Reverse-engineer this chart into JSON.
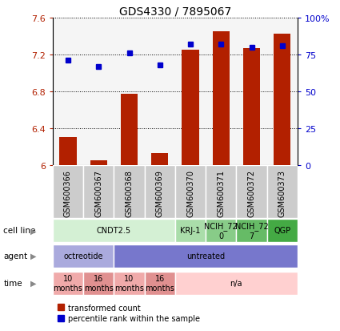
{
  "title": "GDS4330 / 7895067",
  "samples": [
    "GSM600366",
    "GSM600367",
    "GSM600368",
    "GSM600369",
    "GSM600370",
    "GSM600371",
    "GSM600372",
    "GSM600373"
  ],
  "bar_values": [
    6.3,
    6.05,
    6.77,
    6.13,
    7.25,
    7.45,
    7.27,
    7.42
  ],
  "dot_values": [
    71,
    67,
    76,
    68,
    82,
    82,
    80,
    81
  ],
  "ylim_left": [
    6.0,
    7.6
  ],
  "ylim_right": [
    0,
    100
  ],
  "yticks_left": [
    6.0,
    6.4,
    6.8,
    7.2,
    7.6
  ],
  "ytick_labels_left": [
    "6",
    "6.4",
    "6.8",
    "7.2",
    "7.6"
  ],
  "yticks_right": [
    0,
    25,
    50,
    75,
    100
  ],
  "ytick_labels_right": [
    "0",
    "25",
    "50",
    "75",
    "100%"
  ],
  "bar_color": "#B22000",
  "dot_color": "#0000CC",
  "bar_bottom": 6.0,
  "cell_line_groups": [
    {
      "label": "CNDT2.5",
      "span": [
        0,
        4
      ],
      "color": "#d4f0d4"
    },
    {
      "label": "KRJ-1",
      "span": [
        4,
        5
      ],
      "color": "#aaddaa"
    },
    {
      "label": "NCIH_72\n0",
      "span": [
        5,
        6
      ],
      "color": "#88cc88"
    },
    {
      "label": "NCIH_72\n7",
      "span": [
        6,
        7
      ],
      "color": "#66bb66"
    },
    {
      "label": "QGP",
      "span": [
        7,
        8
      ],
      "color": "#44aa44"
    }
  ],
  "agent_groups": [
    {
      "label": "octreotide",
      "span": [
        0,
        2
      ],
      "color": "#aaaadd"
    },
    {
      "label": "untreated",
      "span": [
        2,
        8
      ],
      "color": "#7777cc"
    }
  ],
  "time_groups": [
    {
      "label": "10\nmonths",
      "span": [
        0,
        1
      ],
      "color": "#f0aaaa"
    },
    {
      "label": "16\nmonths",
      "span": [
        1,
        2
      ],
      "color": "#e09090"
    },
    {
      "label": "10\nmonths",
      "span": [
        2,
        3
      ],
      "color": "#f0aaaa"
    },
    {
      "label": "16\nmonths",
      "span": [
        3,
        4
      ],
      "color": "#e09090"
    },
    {
      "label": "n/a",
      "span": [
        4,
        8
      ],
      "color": "#ffd0d0"
    }
  ],
  "legend_bar_label": "transformed count",
  "legend_dot_label": "percentile rank within the sample",
  "row_labels": [
    "cell line",
    "agent",
    "time"
  ],
  "sample_box_color": "#cccccc",
  "chart_bg_color": "#f5f5f5"
}
